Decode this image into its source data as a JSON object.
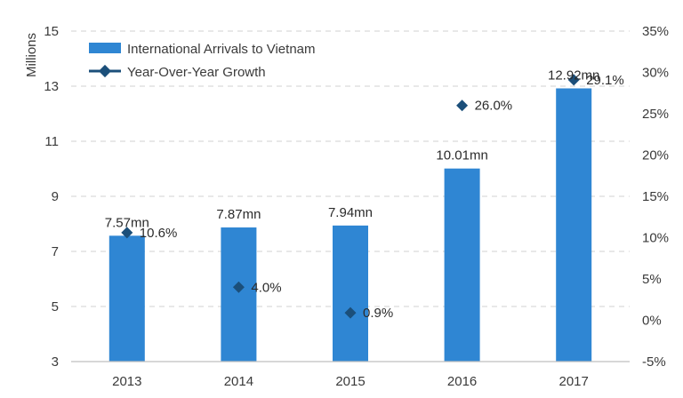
{
  "chart_data": {
    "type": "bar",
    "title": "",
    "xlabel": "",
    "ylabel": "Millions",
    "y2label": "",
    "categories": [
      "2013",
      "2014",
      "2015",
      "2016",
      "2017"
    ],
    "ylim": [
      3,
      15
    ],
    "yticks": [
      "3",
      "5",
      "7",
      "9",
      "11",
      "13",
      "15"
    ],
    "y2lim": [
      -5,
      35
    ],
    "y2ticks": [
      "-5%",
      "0%",
      "5%",
      "10%",
      "15%",
      "20%",
      "25%",
      "30%",
      "35%"
    ],
    "grid": true,
    "legend_position": "top-left",
    "series": [
      {
        "name": "International Arrivals to Vietnam",
        "type": "bar",
        "axis": "left",
        "color": "#2f86d3",
        "values": [
          7.57,
          7.87,
          7.94,
          10.01,
          12.92
        ],
        "labels": [
          "7.57mn",
          "7.87mn",
          "7.94mn",
          "10.01mn",
          "12.92mn"
        ]
      },
      {
        "name": "Year-Over-Year Growth",
        "type": "marker",
        "axis": "right",
        "color": "#1b4f7a",
        "values": [
          10.6,
          4.0,
          0.9,
          26.0,
          29.1
        ],
        "labels": [
          "10.6%",
          "4.0%",
          "0.9%",
          "26.0%",
          "29.1%"
        ]
      }
    ]
  }
}
